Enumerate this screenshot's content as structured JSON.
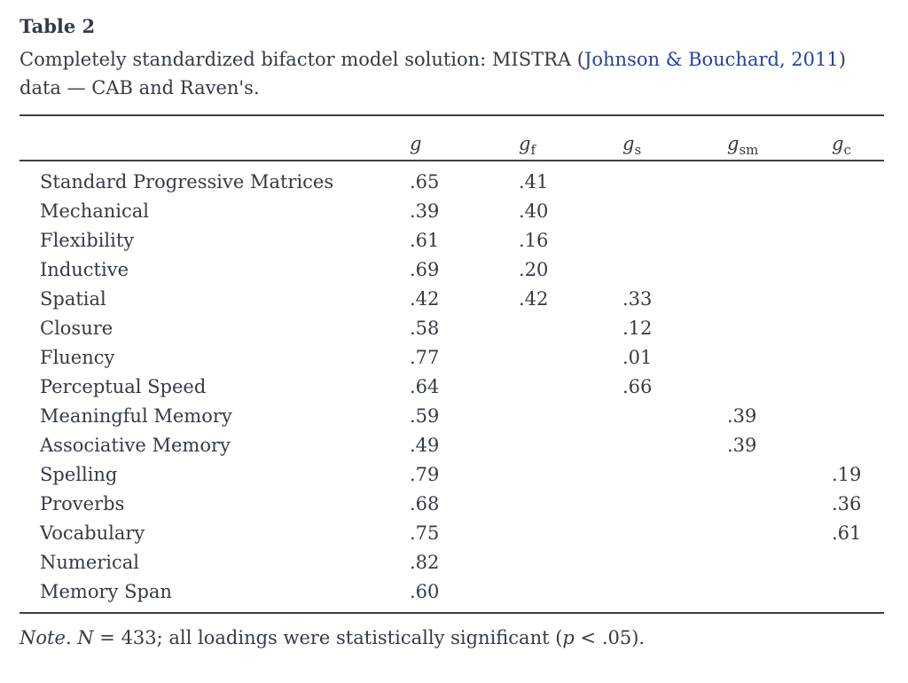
{
  "page": {
    "title": "Table 2"
  },
  "caption": {
    "line1_before_link": "Completely standardized bifactor model solution: MISTRA (",
    "line1_link": "Johnson & Bouchard, 2011",
    "line1_after_link": ")",
    "line2": "data — CAB and Raven's."
  },
  "colors": {
    "text": "#333b46",
    "link": "#2540a8",
    "rule": "#3b4148"
  },
  "table": {
    "columns": [
      {
        "main": "g",
        "sub": ""
      },
      {
        "main": "g",
        "sub": "f"
      },
      {
        "main": "g",
        "sub": "s"
      },
      {
        "main": "g",
        "sub": "sm"
      },
      {
        "main": "g",
        "sub": "c"
      }
    ],
    "rows": [
      {
        "label": "Standard Progressive Matrices",
        "values": [
          ".65",
          ".41",
          "",
          "",
          ""
        ]
      },
      {
        "label": "Mechanical",
        "values": [
          ".39",
          ".40",
          "",
          "",
          ""
        ]
      },
      {
        "label": "Flexibility",
        "values": [
          ".61",
          ".16",
          "",
          "",
          ""
        ]
      },
      {
        "label": "Inductive",
        "values": [
          ".69",
          ".20",
          "",
          "",
          ""
        ]
      },
      {
        "label": "Spatial",
        "values": [
          ".42",
          ".42",
          ".33",
          "",
          ""
        ]
      },
      {
        "label": "Closure",
        "values": [
          ".58",
          "",
          ".12",
          "",
          ""
        ]
      },
      {
        "label": "Fluency",
        "values": [
          ".77",
          "",
          ".01",
          "",
          ""
        ]
      },
      {
        "label": "Perceptual Speed",
        "values": [
          ".64",
          "",
          ".66",
          "",
          ""
        ]
      },
      {
        "label": "Meaningful Memory",
        "values": [
          ".59",
          "",
          "",
          ".39",
          ""
        ]
      },
      {
        "label": "Associative Memory",
        "values": [
          ".49",
          "",
          "",
          ".39",
          ""
        ]
      },
      {
        "label": "Spelling",
        "values": [
          ".79",
          "",
          "",
          "",
          ".19"
        ]
      },
      {
        "label": "Proverbs",
        "values": [
          ".68",
          "",
          "",
          "",
          ".36"
        ]
      },
      {
        "label": "Vocabulary",
        "values": [
          ".75",
          "",
          "",
          "",
          ".61"
        ]
      },
      {
        "label": "Numerical",
        "values": [
          ".82",
          "",
          "",
          "",
          ""
        ]
      },
      {
        "label": "Memory Span",
        "values": [
          ".60",
          "",
          "",
          "",
          ""
        ]
      }
    ]
  },
  "note": {
    "prefix": "Note. N",
    "part1": " = 433; all loadings were statistically significant (",
    "p_symbol": "p",
    "part2": " < .05)."
  }
}
